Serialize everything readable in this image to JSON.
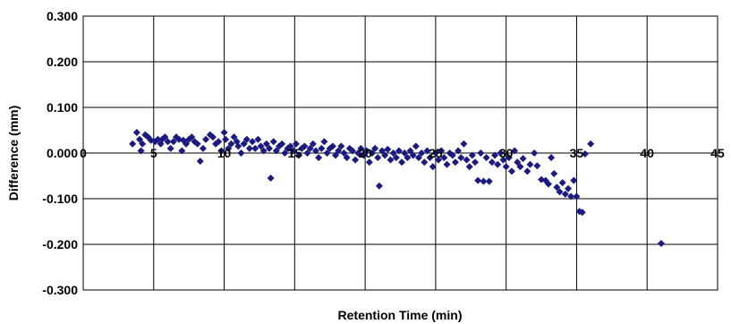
{
  "chart_data": {
    "type": "scatter",
    "title": "",
    "xlabel": "Retention Time (min)",
    "ylabel": "Difference (mm)",
    "xlim": [
      0,
      45
    ],
    "ylim": [
      -0.3,
      0.3
    ],
    "x_ticks": [
      0,
      5,
      10,
      15,
      20,
      25,
      30,
      35,
      40,
      45
    ],
    "x_tick_labels": [
      "0",
      "5",
      "10",
      "15",
      "20",
      "25",
      "30",
      "35",
      "40",
      "45"
    ],
    "y_ticks": [
      0.3,
      0.2,
      0.1,
      0.0,
      -0.1,
      -0.2,
      -0.3
    ],
    "y_tick_labels": [
      "0.300",
      "0.200",
      "0.100",
      "0.000",
      "-0.100",
      "-0.200",
      "-0.300"
    ],
    "grid": true,
    "legend": "none",
    "marker": "diamond",
    "marker_color": "#1a1a80",
    "series": [
      {
        "points": [
          [
            3.5,
            0.02
          ],
          [
            3.8,
            0.045
          ],
          [
            4.0,
            0.03
          ],
          [
            4.1,
            0.005
          ],
          [
            4.2,
            0.02
          ],
          [
            4.4,
            0.04
          ],
          [
            4.6,
            0.035
          ],
          [
            4.8,
            0.028
          ],
          [
            5.1,
            0.025
          ],
          [
            5.3,
            0.03
          ],
          [
            5.5,
            0.02
          ],
          [
            5.6,
            0.03
          ],
          [
            5.8,
            0.035
          ],
          [
            6.0,
            0.025
          ],
          [
            6.2,
            0.01
          ],
          [
            6.4,
            0.025
          ],
          [
            6.6,
            0.035
          ],
          [
            6.8,
            0.03
          ],
          [
            7.0,
            0.005
          ],
          [
            7.1,
            0.028
          ],
          [
            7.3,
            0.02
          ],
          [
            7.5,
            0.03
          ],
          [
            7.7,
            0.035
          ],
          [
            7.9,
            0.025
          ],
          [
            8.1,
            0.02
          ],
          [
            8.3,
            -0.018
          ],
          [
            8.5,
            0.01
          ],
          [
            8.7,
            0.03
          ],
          [
            9.0,
            0.04
          ],
          [
            9.2,
            0.035
          ],
          [
            9.4,
            0.02
          ],
          [
            9.6,
            0.025
          ],
          [
            9.8,
            0.005
          ],
          [
            10.0,
            0.045
          ],
          [
            10.1,
            0.03
          ],
          [
            10.3,
            0.01
          ],
          [
            10.5,
            0.02
          ],
          [
            10.7,
            0.035
          ],
          [
            10.9,
            0.025
          ],
          [
            11.0,
            0.015
          ],
          [
            11.2,
            0.0
          ],
          [
            11.4,
            0.02
          ],
          [
            11.6,
            0.03
          ],
          [
            11.8,
            0.01
          ],
          [
            12.0,
            0.025
          ],
          [
            12.2,
            0.01
          ],
          [
            12.4,
            0.03
          ],
          [
            12.6,
            0.015
          ],
          [
            12.8,
            0.005
          ],
          [
            13.0,
            0.02
          ],
          [
            13.2,
            0.01
          ],
          [
            13.3,
            -0.055
          ],
          [
            13.5,
            0.025
          ],
          [
            13.7,
            0.005
          ],
          [
            13.9,
            0.015
          ],
          [
            14.1,
            0.02
          ],
          [
            14.3,
            0.0
          ],
          [
            14.5,
            0.01
          ],
          [
            14.7,
            0.015
          ],
          [
            14.9,
            0.005
          ],
          [
            15.1,
            0.02
          ],
          [
            15.3,
            -0.005
          ],
          [
            15.5,
            0.01
          ],
          [
            15.7,
            0.015
          ],
          [
            15.9,
            0.0
          ],
          [
            16.1,
            0.01
          ],
          [
            16.3,
            0.02
          ],
          [
            16.5,
            0.005
          ],
          [
            16.7,
            -0.01
          ],
          [
            16.9,
            0.01
          ],
          [
            17.1,
            0.025
          ],
          [
            17.3,
            0.0
          ],
          [
            17.5,
            0.01
          ],
          [
            17.7,
            0.015
          ],
          [
            17.9,
            -0.005
          ],
          [
            18.1,
            0.005
          ],
          [
            18.3,
            0.015
          ],
          [
            18.5,
            0.0
          ],
          [
            18.7,
            -0.01
          ],
          [
            18.9,
            0.01
          ],
          [
            19.1,
            0.005
          ],
          [
            19.3,
            -0.015
          ],
          [
            19.5,
            0.0
          ],
          [
            19.7,
            0.01
          ],
          [
            19.9,
            -0.005
          ],
          [
            20.1,
            0.005
          ],
          [
            20.3,
            -0.02
          ],
          [
            20.5,
            0.0
          ],
          [
            20.7,
            0.01
          ],
          [
            20.9,
            -0.01
          ],
          [
            21.0,
            -0.072
          ],
          [
            21.2,
            0.005
          ],
          [
            21.4,
            -0.005
          ],
          [
            21.6,
            0.008
          ],
          [
            21.8,
            -0.015
          ],
          [
            22.0,
            0.0
          ],
          [
            22.2,
            -0.01
          ],
          [
            22.4,
            0.005
          ],
          [
            22.6,
            -0.02
          ],
          [
            22.8,
            0.0
          ],
          [
            23.0,
            -0.01
          ],
          [
            23.2,
            0.005
          ],
          [
            23.4,
            -0.005
          ],
          [
            23.6,
            0.015
          ],
          [
            23.8,
            -0.01
          ],
          [
            24.0,
            0.0
          ],
          [
            24.2,
            -0.02
          ],
          [
            24.4,
            0.005
          ],
          [
            24.6,
            -0.01
          ],
          [
            24.8,
            -0.03
          ],
          [
            25.0,
            0.0
          ],
          [
            25.2,
            -0.015
          ],
          [
            25.4,
            0.005
          ],
          [
            25.6,
            -0.01
          ],
          [
            25.8,
            -0.025
          ],
          [
            26.0,
            0.0
          ],
          [
            26.2,
            -0.005
          ],
          [
            26.4,
            -0.02
          ],
          [
            26.6,
            0.005
          ],
          [
            26.8,
            -0.01
          ],
          [
            27.0,
            0.02
          ],
          [
            27.2,
            -0.015
          ],
          [
            27.4,
            -0.03
          ],
          [
            27.6,
            -0.005
          ],
          [
            27.8,
            -0.02
          ],
          [
            28.0,
            -0.06
          ],
          [
            28.2,
            0.0
          ],
          [
            28.4,
            -0.062
          ],
          [
            28.6,
            -0.01
          ],
          [
            28.8,
            -0.062
          ],
          [
            29.0,
            -0.02
          ],
          [
            29.2,
            -0.005
          ],
          [
            29.4,
            -0.025
          ],
          [
            29.6,
            0.0
          ],
          [
            29.8,
            -0.015
          ],
          [
            30.0,
            -0.03
          ],
          [
            30.2,
            -0.01
          ],
          [
            30.4,
            -0.04
          ],
          [
            30.6,
            0.005
          ],
          [
            30.8,
            -0.02
          ],
          [
            31.0,
            -0.03
          ],
          [
            31.2,
            -0.012
          ],
          [
            31.5,
            -0.04
          ],
          [
            31.7,
            -0.025
          ],
          [
            32.0,
            0.0
          ],
          [
            32.2,
            -0.028
          ],
          [
            32.5,
            -0.058
          ],
          [
            32.8,
            -0.06
          ],
          [
            33.0,
            -0.068
          ],
          [
            33.2,
            -0.01
          ],
          [
            33.4,
            -0.045
          ],
          [
            33.6,
            -0.075
          ],
          [
            33.8,
            -0.085
          ],
          [
            34.0,
            -0.065
          ],
          [
            34.2,
            -0.09
          ],
          [
            34.4,
            -0.078
          ],
          [
            34.6,
            -0.095
          ],
          [
            34.8,
            -0.06
          ],
          [
            35.0,
            -0.095
          ],
          [
            35.2,
            -0.128
          ],
          [
            35.4,
            -0.13
          ],
          [
            35.6,
            -0.002
          ],
          [
            36.0,
            0.02
          ],
          [
            41.0,
            -0.198
          ]
        ]
      }
    ]
  }
}
